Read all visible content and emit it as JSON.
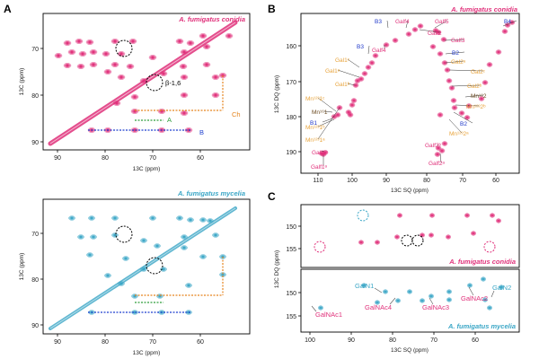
{
  "panels": {
    "A": {
      "label": "A",
      "conidia_title": "A. fumigatus conidia",
      "mycelia_title": "A. fumigatus mycelia",
      "xlabel": "13C (ppm)",
      "ylabel": "13C (ppm)",
      "xticks": [
        "90",
        "80",
        "70",
        "60"
      ],
      "yticks": [
        "70",
        "80",
        "90"
      ],
      "annotations": {
        "beta": "β-1,6",
        "A": "A",
        "B": "B",
        "Ch": "Ch"
      }
    },
    "B": {
      "label": "B",
      "title": "A. fumigatus conidia",
      "xlabel": "13C SQ (ppm)",
      "ylabel": "13C DQ (ppm)",
      "xticks": [
        "110",
        "100",
        "90",
        "80",
        "70",
        "60"
      ],
      "yticks": [
        "160",
        "170",
        "180",
        "190"
      ],
      "labels": {
        "B3a": "B3",
        "Galf4a": "Galf4",
        "Galf5": "Galf5",
        "B4": "B4",
        "Galf2": "Galf2",
        "Galf3": "Galf3",
        "Galf4b": "Galf4",
        "B3b": "B3",
        "B2a": "B2",
        "Gal1c": "Gal1ᶜ",
        "Gal2a": "Gal2ᵃ",
        "Gal1a": "Gal1ᵃ",
        "Gal2c": "Gal2ᶜ",
        "Gal1b": "Gal1ᵇ",
        "Gal2b": "Gal2ᵇ",
        "Mn162": "Mn¹⁶2",
        "Mn12311": "Mn¹²³1ᶜ",
        "Mn1621": "Mn¹⁶1",
        "Mn12312": "Mn¹²³2ᵇ",
        "Mn12313": "Mn¹²³1ᵇ",
        "B1": "B1",
        "B2b": "B2",
        "Mn12314": "Mn¹²³2ᵃ",
        "Mn12315": "Mn¹²³1ᵃ",
        "Galf1b": "Galf1ᵇ",
        "Galf2b": "Galf2ᵇ",
        "Galf1a": "Galf1ᵃ",
        "Galf2a": "Galf2ᵃ"
      }
    },
    "C": {
      "label": "C",
      "conidia_title": "A. fumigatus conidia",
      "mycelia_title": "A. fumigatus mycelia",
      "xlabel": "13C SQ (ppm)",
      "ylabel": "13C DQ (ppm)",
      "xticks": [
        "100",
        "90",
        "80",
        "70",
        "60"
      ],
      "yticks_top": [
        "150",
        "155"
      ],
      "yticks_bottom": [
        "150",
        "155"
      ],
      "labels": {
        "GalN1": "GalN1",
        "GalNAc4": "GalNAc4",
        "GalNAc3": "GalNAc3",
        "GalNAc2": "GalNAc2",
        "GalN2": "GalN2",
        "GalNAc1": "GalNAc1"
      }
    }
  },
  "colors": {
    "conidia": "#e0307a",
    "mycelia": "#3aa6c6",
    "blue_label": "#1f38c9",
    "gold_label": "#e8a33a",
    "brown_label": "#6b4a1f",
    "green_dash": "#2e9d3b",
    "orange_dash": "#e5841e",
    "blue_dash": "#1d3fcf"
  }
}
